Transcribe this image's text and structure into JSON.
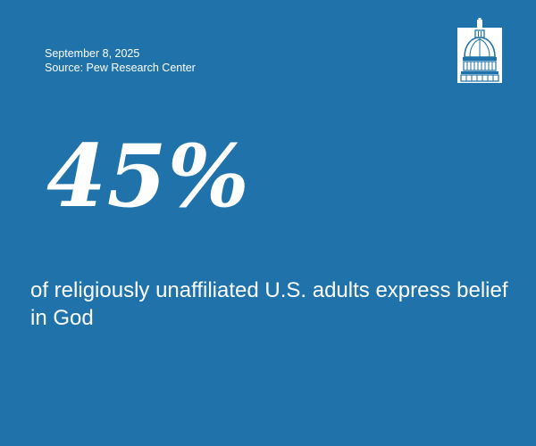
{
  "meta": {
    "date": "September 8, 2025",
    "source": "Source: Pew Research Center"
  },
  "stat": {
    "value": "45%",
    "caption": "of religiously unaffiliated U.S. adults express belief in God"
  },
  "logo": {
    "icon": "capitol-dome-icon"
  },
  "colors": {
    "background": "#1f72aa",
    "text": "#ffffff"
  }
}
